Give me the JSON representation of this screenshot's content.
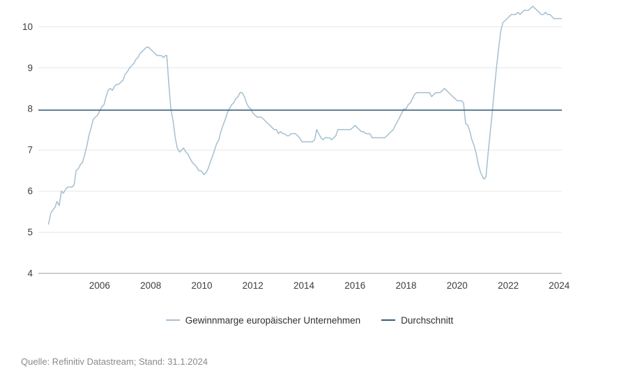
{
  "source": "Quelle: Refinitiv Datastream; Stand: 31.1.2024",
  "colors": {
    "series": "#a5bfd1",
    "average": "#2e5f7f",
    "grid": "#e6e6e6",
    "axis": "#9b9b9b",
    "tick_text": "#3d3d3d",
    "legend_text": "#2f2f2f",
    "source_text": "#8a8a8a",
    "background": "#ffffff"
  },
  "chart_data": {
    "type": "line",
    "title": "",
    "xlabel": "",
    "ylabel": "",
    "x_ticks": [
      2006,
      2008,
      2010,
      2012,
      2014,
      2016,
      2018,
      2020,
      2022,
      2024
    ],
    "y_ticks": [
      4,
      5,
      6,
      7,
      8,
      9,
      10
    ],
    "xlim": [
      2003.6,
      2024.1
    ],
    "ylim": [
      4,
      10.6
    ],
    "grid": true,
    "legend_position": "bottom",
    "series": [
      {
        "name": "Gewinnmarge europäischer Unternehmen",
        "type": "line",
        "color": "#a5bfd1",
        "points": [
          [
            2004.0,
            5.2
          ],
          [
            2004.08,
            5.45
          ],
          [
            2004.17,
            5.55
          ],
          [
            2004.25,
            5.6
          ],
          [
            2004.33,
            5.75
          ],
          [
            2004.42,
            5.65
          ],
          [
            2004.5,
            6.0
          ],
          [
            2004.58,
            5.95
          ],
          [
            2004.67,
            6.05
          ],
          [
            2004.75,
            6.1
          ],
          [
            2004.83,
            6.1
          ],
          [
            2004.92,
            6.1
          ],
          [
            2005.0,
            6.15
          ],
          [
            2005.08,
            6.5
          ],
          [
            2005.17,
            6.55
          ],
          [
            2005.25,
            6.65
          ],
          [
            2005.33,
            6.7
          ],
          [
            2005.42,
            6.9
          ],
          [
            2005.5,
            7.1
          ],
          [
            2005.58,
            7.35
          ],
          [
            2005.67,
            7.55
          ],
          [
            2005.75,
            7.75
          ],
          [
            2005.83,
            7.8
          ],
          [
            2005.92,
            7.85
          ],
          [
            2006.0,
            7.95
          ],
          [
            2006.08,
            8.05
          ],
          [
            2006.17,
            8.1
          ],
          [
            2006.25,
            8.3
          ],
          [
            2006.33,
            8.45
          ],
          [
            2006.42,
            8.5
          ],
          [
            2006.5,
            8.45
          ],
          [
            2006.58,
            8.55
          ],
          [
            2006.67,
            8.6
          ],
          [
            2006.75,
            8.6
          ],
          [
            2006.83,
            8.65
          ],
          [
            2006.92,
            8.7
          ],
          [
            2007.0,
            8.85
          ],
          [
            2007.08,
            8.9
          ],
          [
            2007.17,
            9.0
          ],
          [
            2007.25,
            9.05
          ],
          [
            2007.33,
            9.1
          ],
          [
            2007.42,
            9.2
          ],
          [
            2007.5,
            9.25
          ],
          [
            2007.58,
            9.35
          ],
          [
            2007.67,
            9.4
          ],
          [
            2007.75,
            9.45
          ],
          [
            2007.83,
            9.5
          ],
          [
            2007.92,
            9.5
          ],
          [
            2008.0,
            9.45
          ],
          [
            2008.08,
            9.4
          ],
          [
            2008.17,
            9.35
          ],
          [
            2008.25,
            9.3
          ],
          [
            2008.33,
            9.3
          ],
          [
            2008.42,
            9.3
          ],
          [
            2008.5,
            9.25
          ],
          [
            2008.58,
            9.3
          ],
          [
            2008.63,
            9.3
          ],
          [
            2008.71,
            8.6
          ],
          [
            2008.79,
            8.0
          ],
          [
            2008.88,
            7.7
          ],
          [
            2008.96,
            7.3
          ],
          [
            2009.04,
            7.05
          ],
          [
            2009.13,
            6.95
          ],
          [
            2009.21,
            7.0
          ],
          [
            2009.29,
            7.05
          ],
          [
            2009.38,
            6.95
          ],
          [
            2009.46,
            6.9
          ],
          [
            2009.54,
            6.8
          ],
          [
            2009.63,
            6.7
          ],
          [
            2009.71,
            6.65
          ],
          [
            2009.79,
            6.6
          ],
          [
            2009.88,
            6.5
          ],
          [
            2009.96,
            6.5
          ],
          [
            2010.04,
            6.45
          ],
          [
            2010.08,
            6.4
          ],
          [
            2010.17,
            6.45
          ],
          [
            2010.25,
            6.55
          ],
          [
            2010.33,
            6.7
          ],
          [
            2010.42,
            6.85
          ],
          [
            2010.5,
            7.0
          ],
          [
            2010.58,
            7.15
          ],
          [
            2010.67,
            7.25
          ],
          [
            2010.75,
            7.45
          ],
          [
            2010.83,
            7.6
          ],
          [
            2010.92,
            7.75
          ],
          [
            2011.0,
            7.9
          ],
          [
            2011.08,
            8.0
          ],
          [
            2011.17,
            8.1
          ],
          [
            2011.25,
            8.15
          ],
          [
            2011.33,
            8.25
          ],
          [
            2011.42,
            8.3
          ],
          [
            2011.5,
            8.4
          ],
          [
            2011.58,
            8.4
          ],
          [
            2011.67,
            8.3
          ],
          [
            2011.75,
            8.15
          ],
          [
            2011.83,
            8.05
          ],
          [
            2011.92,
            8.0
          ],
          [
            2012.0,
            7.9
          ],
          [
            2012.08,
            7.85
          ],
          [
            2012.17,
            7.8
          ],
          [
            2012.25,
            7.8
          ],
          [
            2012.33,
            7.8
          ],
          [
            2012.42,
            7.75
          ],
          [
            2012.5,
            7.7
          ],
          [
            2012.58,
            7.65
          ],
          [
            2012.67,
            7.6
          ],
          [
            2012.75,
            7.55
          ],
          [
            2012.83,
            7.5
          ],
          [
            2012.92,
            7.5
          ],
          [
            2013.0,
            7.4
          ],
          [
            2013.08,
            7.45
          ],
          [
            2013.17,
            7.4
          ],
          [
            2013.25,
            7.4
          ],
          [
            2013.33,
            7.35
          ],
          [
            2013.42,
            7.35
          ],
          [
            2013.5,
            7.4
          ],
          [
            2013.58,
            7.4
          ],
          [
            2013.67,
            7.4
          ],
          [
            2013.75,
            7.35
          ],
          [
            2013.83,
            7.3
          ],
          [
            2013.92,
            7.2
          ],
          [
            2014.0,
            7.2
          ],
          [
            2014.08,
            7.2
          ],
          [
            2014.17,
            7.2
          ],
          [
            2014.25,
            7.2
          ],
          [
            2014.33,
            7.2
          ],
          [
            2014.42,
            7.25
          ],
          [
            2014.5,
            7.5
          ],
          [
            2014.58,
            7.4
          ],
          [
            2014.67,
            7.3
          ],
          [
            2014.75,
            7.25
          ],
          [
            2014.83,
            7.3
          ],
          [
            2014.92,
            7.3
          ],
          [
            2015.0,
            7.3
          ],
          [
            2015.08,
            7.25
          ],
          [
            2015.17,
            7.3
          ],
          [
            2015.25,
            7.35
          ],
          [
            2015.33,
            7.5
          ],
          [
            2015.42,
            7.5
          ],
          [
            2015.5,
            7.5
          ],
          [
            2015.58,
            7.5
          ],
          [
            2015.67,
            7.5
          ],
          [
            2015.75,
            7.5
          ],
          [
            2015.83,
            7.5
          ],
          [
            2015.92,
            7.55
          ],
          [
            2016.0,
            7.6
          ],
          [
            2016.08,
            7.55
          ],
          [
            2016.17,
            7.5
          ],
          [
            2016.25,
            7.45
          ],
          [
            2016.33,
            7.45
          ],
          [
            2016.42,
            7.4
          ],
          [
            2016.5,
            7.4
          ],
          [
            2016.58,
            7.4
          ],
          [
            2016.67,
            7.3
          ],
          [
            2016.75,
            7.3
          ],
          [
            2016.83,
            7.3
          ],
          [
            2016.92,
            7.3
          ],
          [
            2017.0,
            7.3
          ],
          [
            2017.08,
            7.3
          ],
          [
            2017.17,
            7.3
          ],
          [
            2017.25,
            7.35
          ],
          [
            2017.33,
            7.4
          ],
          [
            2017.42,
            7.45
          ],
          [
            2017.5,
            7.5
          ],
          [
            2017.58,
            7.6
          ],
          [
            2017.67,
            7.7
          ],
          [
            2017.75,
            7.8
          ],
          [
            2017.83,
            7.9
          ],
          [
            2017.92,
            8.0
          ],
          [
            2018.0,
            8.0
          ],
          [
            2018.08,
            8.1
          ],
          [
            2018.17,
            8.15
          ],
          [
            2018.25,
            8.25
          ],
          [
            2018.33,
            8.35
          ],
          [
            2018.42,
            8.4
          ],
          [
            2018.5,
            8.4
          ],
          [
            2018.58,
            8.4
          ],
          [
            2018.67,
            8.4
          ],
          [
            2018.75,
            8.4
          ],
          [
            2018.83,
            8.4
          ],
          [
            2018.92,
            8.4
          ],
          [
            2019.0,
            8.3
          ],
          [
            2019.08,
            8.35
          ],
          [
            2019.17,
            8.4
          ],
          [
            2019.25,
            8.4
          ],
          [
            2019.33,
            8.4
          ],
          [
            2019.42,
            8.45
          ],
          [
            2019.5,
            8.5
          ],
          [
            2019.58,
            8.45
          ],
          [
            2019.67,
            8.4
          ],
          [
            2019.75,
            8.35
          ],
          [
            2019.83,
            8.3
          ],
          [
            2019.92,
            8.25
          ],
          [
            2020.0,
            8.2
          ],
          [
            2020.08,
            8.2
          ],
          [
            2020.17,
            8.2
          ],
          [
            2020.25,
            8.15
          ],
          [
            2020.33,
            7.65
          ],
          [
            2020.42,
            7.6
          ],
          [
            2020.5,
            7.45
          ],
          [
            2020.58,
            7.25
          ],
          [
            2020.67,
            7.1
          ],
          [
            2020.75,
            6.9
          ],
          [
            2020.83,
            6.65
          ],
          [
            2020.92,
            6.45
          ],
          [
            2021.0,
            6.35
          ],
          [
            2021.04,
            6.3
          ],
          [
            2021.08,
            6.3
          ],
          [
            2021.13,
            6.35
          ],
          [
            2021.21,
            6.9
          ],
          [
            2021.29,
            7.4
          ],
          [
            2021.38,
            7.95
          ],
          [
            2021.46,
            8.5
          ],
          [
            2021.54,
            9.0
          ],
          [
            2021.63,
            9.5
          ],
          [
            2021.71,
            9.9
          ],
          [
            2021.79,
            10.1
          ],
          [
            2021.88,
            10.15
          ],
          [
            2021.96,
            10.2
          ],
          [
            2022.04,
            10.25
          ],
          [
            2022.13,
            10.3
          ],
          [
            2022.21,
            10.3
          ],
          [
            2022.29,
            10.3
          ],
          [
            2022.38,
            10.35
          ],
          [
            2022.46,
            10.3
          ],
          [
            2022.54,
            10.35
          ],
          [
            2022.63,
            10.4
          ],
          [
            2022.71,
            10.4
          ],
          [
            2022.79,
            10.4
          ],
          [
            2022.88,
            10.45
          ],
          [
            2022.96,
            10.5
          ],
          [
            2023.04,
            10.45
          ],
          [
            2023.13,
            10.4
          ],
          [
            2023.21,
            10.35
          ],
          [
            2023.29,
            10.3
          ],
          [
            2023.38,
            10.3
          ],
          [
            2023.46,
            10.35
          ],
          [
            2023.54,
            10.3
          ],
          [
            2023.63,
            10.3
          ],
          [
            2023.71,
            10.25
          ],
          [
            2023.79,
            10.2
          ],
          [
            2023.88,
            10.2
          ],
          [
            2023.96,
            10.2
          ],
          [
            2024.04,
            10.2
          ],
          [
            2024.08,
            10.2
          ]
        ]
      },
      {
        "name": "Durchschnitt",
        "type": "hline",
        "value": 7.97,
        "color": "#2e5f7f"
      }
    ]
  }
}
